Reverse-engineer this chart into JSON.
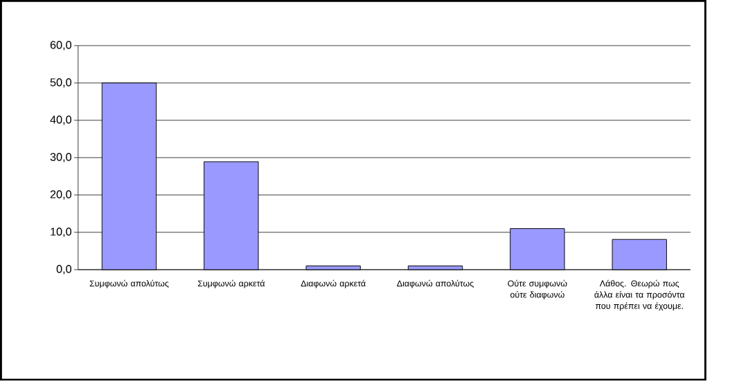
{
  "chart_data": {
    "type": "bar",
    "categories": [
      "Συμφωνώ απολύτως",
      "Συμφωνώ αρκετά",
      "Διαφωνώ αρκετά",
      "Διαφωνώ απολύτως",
      "Ούτε συμφωνώ ούτε διαφωνώ",
      "Λάθος. Θεωρώ πως άλλα είναι τα προσόντα που πρέπει να έχουμε."
    ],
    "values": [
      50.0,
      28.9,
      1.0,
      1.0,
      11.0,
      8.1
    ],
    "color": "#9999ff",
    "ylim": [
      0,
      60
    ],
    "yticks": [
      {
        "value": 0,
        "label": "0,0"
      },
      {
        "value": 10,
        "label": "10,0"
      },
      {
        "value": 20,
        "label": "20,0"
      },
      {
        "value": 30,
        "label": "30,0"
      },
      {
        "value": 40,
        "label": "40,0"
      },
      {
        "value": 50,
        "label": "50,0"
      },
      {
        "value": 60,
        "label": "60,0"
      }
    ],
    "grid": "y"
  }
}
